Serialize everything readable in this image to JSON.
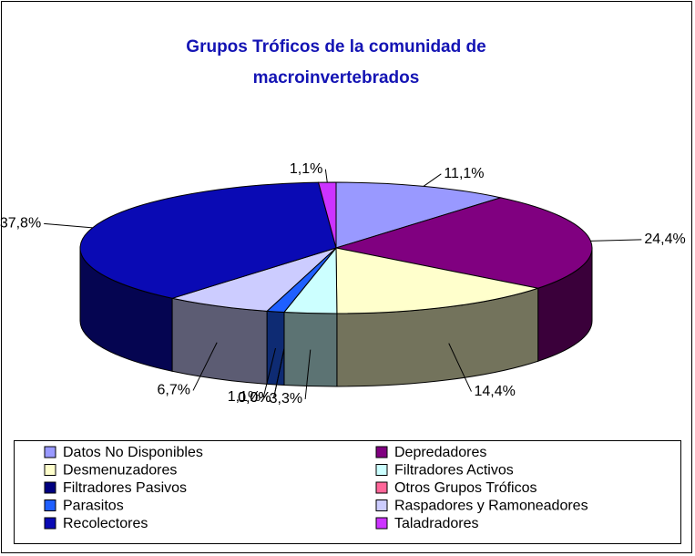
{
  "chart_data": {
    "type": "pie3d",
    "title": [
      "Grupos Tróficos de la comunidad de",
      "macroinvertebrados"
    ],
    "categories": [
      "Datos No Disponibles",
      "Depredadores",
      "Desmenuzadores",
      "Filtradores Activos",
      "Filtradores Pasivos",
      "Otros Grupos Tróficos",
      "Parasitos",
      "Raspadores y Ramoneadores",
      "Recolectores",
      "Taladradores"
    ],
    "values": [
      11.1,
      24.4,
      14.4,
      3.3,
      0.0,
      0.0,
      1.1,
      6.7,
      37.8,
      1.1
    ],
    "value_labels": [
      "11,1%",
      "24,4%",
      "14,4%",
      "3,3%",
      "0,0%",
      "0,0%",
      "1,1%",
      "6,7%",
      "37,8%",
      "1,1%"
    ],
    "colors": [
      "#9999ff",
      "#800080",
      "#ffffcc",
      "#ccffff",
      "#000080",
      "#ff6699",
      "#1f5fff",
      "#ccccff",
      "#0a0ab4",
      "#cc33ff"
    ],
    "legend": "bottom"
  }
}
